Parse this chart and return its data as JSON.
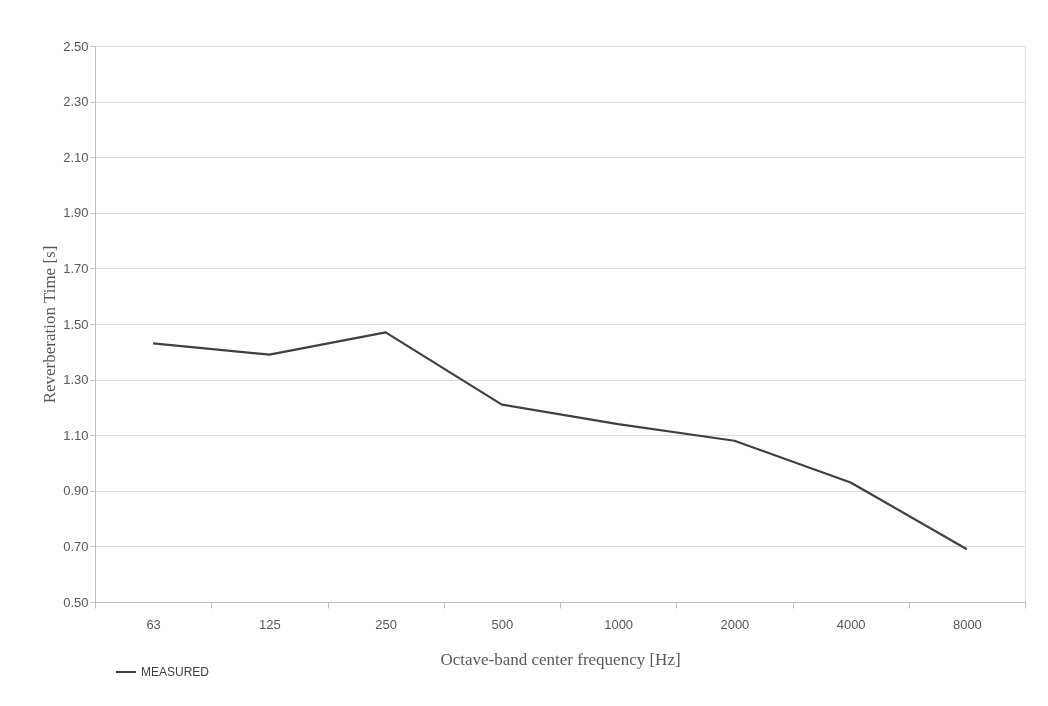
{
  "chart_data": {
    "type": "line",
    "xlabel": "Octave-band center frequency [Hz]",
    "ylabel": "Reverberation Time [s]",
    "categories": [
      "63",
      "125",
      "250",
      "500",
      "1000",
      "2000",
      "4000",
      "8000"
    ],
    "series": [
      {
        "name": "MEASURED",
        "color": "#404040",
        "values": [
          1.43,
          1.39,
          1.47,
          1.21,
          1.14,
          1.08,
          0.93,
          0.69
        ]
      }
    ],
    "ylim": [
      0.5,
      2.5
    ],
    "yticks": [
      {
        "value": 0.5,
        "label": "0.50"
      },
      {
        "value": 0.7,
        "label": "0.70"
      },
      {
        "value": 0.9,
        "label": "0.90"
      },
      {
        "value": 1.1,
        "label": "1.10"
      },
      {
        "value": 1.3,
        "label": "1.30"
      },
      {
        "value": 1.5,
        "label": "1.50"
      },
      {
        "value": 1.7,
        "label": "1.70"
      },
      {
        "value": 1.9,
        "label": "1.90"
      },
      {
        "value": 2.1,
        "label": "2.10"
      },
      {
        "value": 2.3,
        "label": "2.30"
      },
      {
        "value": 2.5,
        "label": "2.50"
      }
    ],
    "grid": "y",
    "legend": "bottom left",
    "marker": "none",
    "line_style": "solid"
  }
}
